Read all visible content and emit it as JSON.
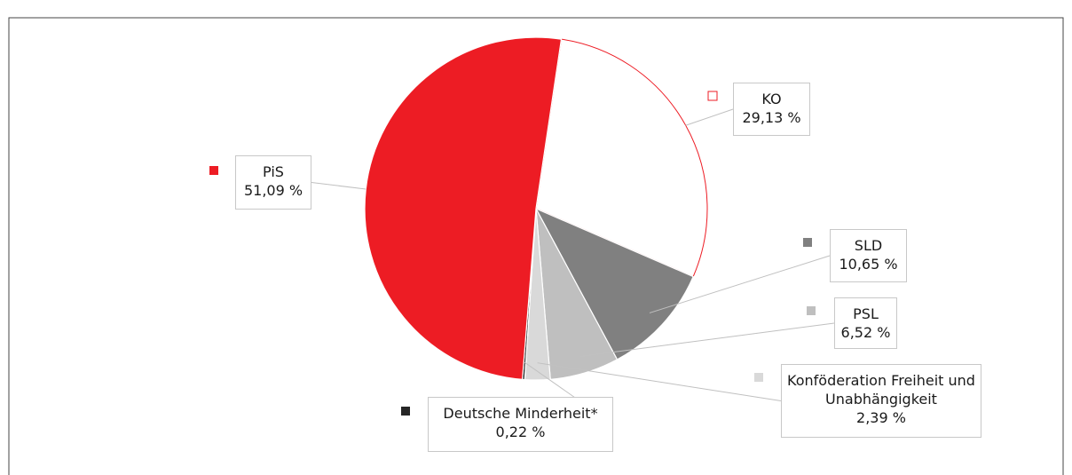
{
  "chart_data": {
    "type": "pie",
    "categories": [
      "KO",
      "SLD",
      "PSL",
      "Konföderation Freiheit und Unabhängigkeit",
      "Deutsche Minderheit*",
      "PiS"
    ],
    "values": [
      29.13,
      10.65,
      6.52,
      2.39,
      0.22,
      51.09
    ],
    "value_labels": [
      "29,13 %",
      "10,65 %",
      "6,52 %",
      "2,39 %",
      "0,22 %",
      "51,09 %"
    ],
    "colors": [
      "#ffffff",
      "#808080",
      "#bfbfbf",
      "#d9d9d9",
      "#262626",
      "#ed1c24"
    ],
    "outline_color": "#ed1c24"
  }
}
